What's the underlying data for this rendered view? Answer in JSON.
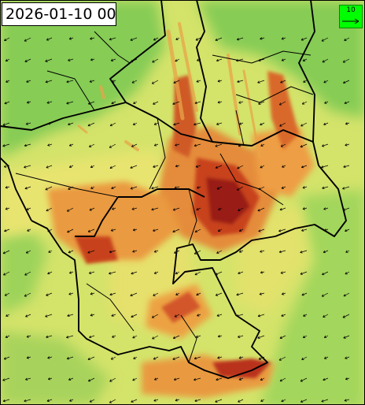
{
  "map": {
    "timestamp": "2026-01-10 00",
    "legend": {
      "reference_value": "10",
      "color": "#00ff00"
    },
    "colors": {
      "green": "#7ec850",
      "light_green": "#a8d860",
      "yellow_green": "#cfe468",
      "yellow": "#eaea70",
      "orange": "#e9a040",
      "dark_orange": "#d9602a",
      "red": "#b5301c",
      "dark_red": "#8a1010",
      "border": "#000000",
      "arrow": "#000000"
    }
  }
}
